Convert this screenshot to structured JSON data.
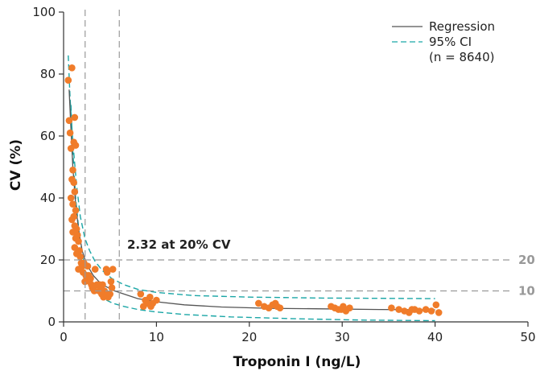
{
  "chart_data": {
    "type": "scatter",
    "title": "",
    "xlabel": "Troponin I (ng/L)",
    "ylabel": "CV (%)",
    "xlim": [
      0,
      50
    ],
    "ylim": [
      0,
      100
    ],
    "xticks": [
      0,
      10,
      20,
      30,
      40,
      50
    ],
    "yticks": [
      0,
      20,
      40,
      60,
      80,
      100
    ],
    "grid": false,
    "legend_position": "top-right",
    "colors": {
      "points": "#f07c2a",
      "regression": "#555555",
      "ci": "#1aa6a6",
      "reference": "#999999"
    },
    "annotation": "2.32 at 20% CV",
    "reference_lines": {
      "horizontal": [
        {
          "y": 20,
          "label": "20"
        },
        {
          "y": 10,
          "label": "10"
        }
      ],
      "vertical": [
        {
          "x": 2.32
        },
        {
          "x": 6
        }
      ]
    },
    "legend": {
      "regression": "Regression",
      "ci": "95% CI",
      "n": "(n = 8640)"
    },
    "series": [
      {
        "name": "Regression",
        "kind": "line",
        "x": [
          0.6,
          0.8,
          1.0,
          1.3,
          1.6,
          2.0,
          2.32,
          2.7,
          3.2,
          3.8,
          4.5,
          5.5,
          6.5,
          8,
          10,
          13,
          17,
          22,
          28,
          34,
          40
        ],
        "y": [
          75,
          62,
          50,
          38,
          30,
          23,
          20,
          17.5,
          15,
          13,
          11.5,
          10,
          9,
          7.5,
          6.5,
          5.5,
          4.8,
          4.4,
          4.2,
          4.0,
          3.9
        ]
      },
      {
        "name": "95% CI",
        "kind": "upper",
        "x": [
          0.5,
          0.7,
          1.0,
          1.4,
          1.8,
          2.3,
          2.8,
          3.4,
          4.2,
          5.2,
          6.5,
          8,
          10,
          14,
          20,
          28,
          34,
          40
        ],
        "y": [
          86,
          72,
          58,
          44,
          34,
          27,
          23,
          19.5,
          16.5,
          14,
          12,
          10.5,
          9.5,
          8.5,
          8,
          7.7,
          7.6,
          7.5
        ]
      },
      {
        "name": "95% CI",
        "kind": "lower",
        "x": [
          0.8,
          1.0,
          1.3,
          1.7,
          2.2,
          2.8,
          3.5,
          4.3,
          5.3,
          6.5,
          8,
          10,
          13,
          18,
          25,
          32,
          40
        ],
        "y": [
          70,
          55,
          40,
          28,
          19,
          13,
          9.5,
          7.5,
          6,
          5,
          4,
          3.2,
          2.4,
          1.6,
          1.0,
          0.6,
          0.4
        ]
      },
      {
        "name": "Points",
        "kind": "points",
        "x": [
          0.5,
          0.9,
          1.2,
          0.7,
          0.8,
          1.1,
          1.3,
          0.6,
          1.0,
          0.9,
          1.1,
          1.2,
          0.8,
          1.0,
          1.3,
          1.1,
          1.2,
          1.4,
          0.9,
          1.0,
          1.3,
          1.5,
          1.6,
          1.2,
          1.4,
          1.7,
          1.8,
          1.9,
          2.0,
          1.6,
          2.1,
          2.2,
          2.4,
          2.5,
          2.6,
          2.3,
          2.8,
          3.0,
          3.2,
          3.4,
          2.7,
          3.6,
          3.8,
          4.0,
          4.2,
          4.4,
          4.5,
          4.8,
          5.0,
          5.2,
          5.3,
          4.7,
          3.9,
          4.6,
          2.9,
          3.1,
          3.3,
          5.1,
          4.3,
          4.1,
          8.3,
          8.8,
          9.0,
          9.3,
          9.6,
          10.0,
          9.4,
          8.6,
          21.0,
          21.6,
          22.1,
          22.5,
          23.0,
          23.3,
          22.8,
          28.8,
          29.2,
          29.6,
          30.1,
          30.4,
          30.8,
          29.9,
          35.3,
          36.1,
          36.7,
          37.2,
          37.8,
          38.3,
          39.0,
          39.6,
          40.1,
          40.4,
          37.5
        ],
        "y": [
          78,
          82,
          66,
          61,
          56,
          58,
          57,
          65,
          49,
          46,
          45,
          42,
          40,
          38,
          36,
          34,
          31,
          30,
          33,
          29,
          27,
          28,
          26,
          24,
          22,
          23,
          21,
          19,
          18,
          17,
          16,
          19,
          15,
          14,
          18,
          13,
          13,
          12,
          11,
          17,
          15,
          12,
          10,
          11,
          12,
          10,
          9,
          8,
          9,
          11,
          17,
          16,
          12,
          17,
          14,
          11,
          10,
          13,
          8,
          9,
          9,
          7,
          6,
          8,
          6,
          7,
          5,
          5,
          6,
          5,
          4.5,
          5.5,
          5,
          4.5,
          6,
          5,
          4.5,
          4,
          5,
          3.5,
          4.5,
          4,
          4.5,
          4,
          3.5,
          3,
          4,
          3.5,
          4,
          3.5,
          5.5,
          3,
          4
        ]
      }
    ]
  }
}
